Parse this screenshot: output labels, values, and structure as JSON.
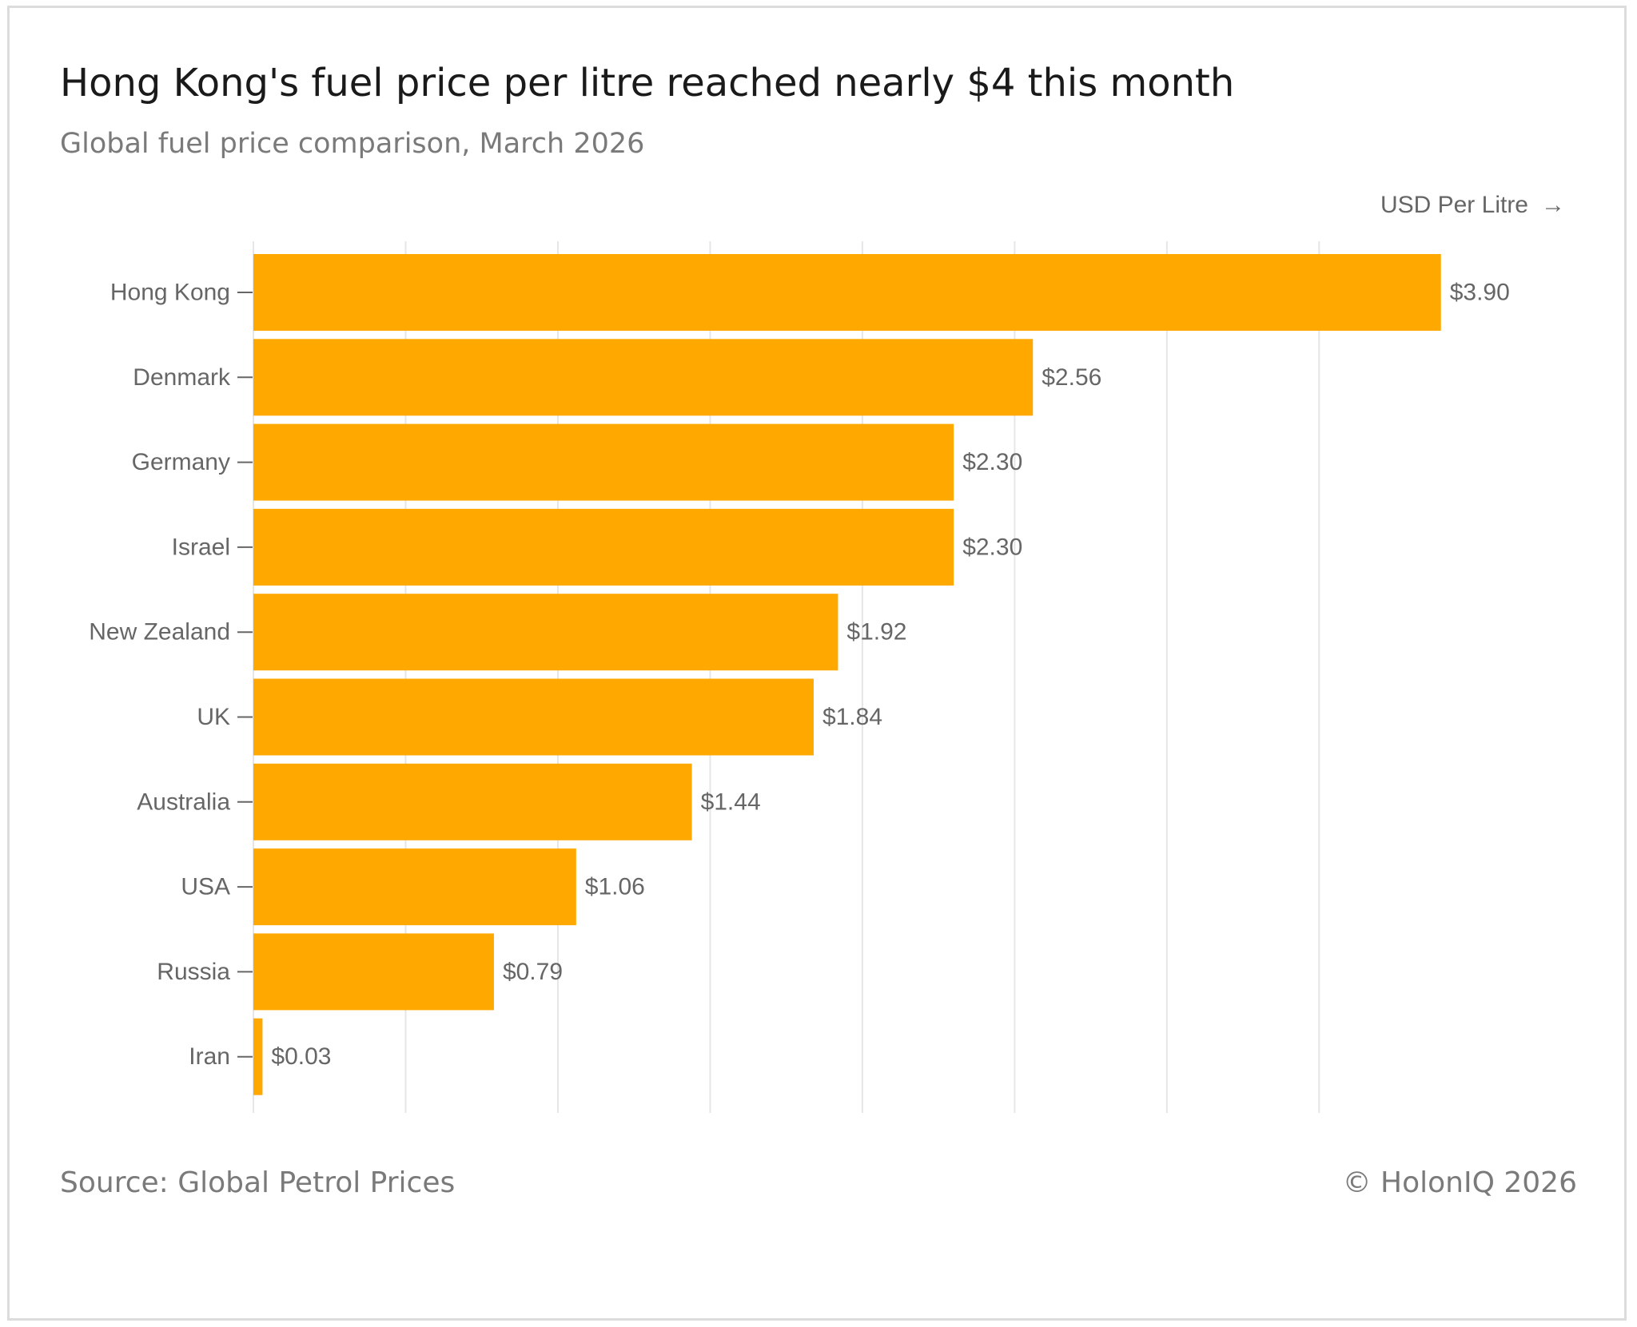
{
  "header": {
    "title": "Hong Kong's fuel price per litre reached nearly $4 this month",
    "subtitle": "Global fuel price comparison, March 2026"
  },
  "footer": {
    "source": "Source: Global Petrol Prices",
    "copyright": "© HolonIQ 2026"
  },
  "colors": {
    "bar": "#FFA800",
    "grid": "#e6e6e6",
    "text": "#666666"
  },
  "chart_data": {
    "type": "bar",
    "orientation": "horizontal",
    "title": "Hong Kong's fuel price per litre reached nearly $4 this month",
    "subtitle": "Global fuel price comparison, March 2026",
    "xlabel": "USD Per Litre",
    "xlabel_arrow": "→",
    "ylabel": "",
    "xlim": [
      0,
      4.2
    ],
    "grid_step": 0.5,
    "grid": true,
    "categories": [
      "Hong Kong",
      "Denmark",
      "Germany",
      "Israel",
      "New Zealand",
      "UK",
      "Australia",
      "USA",
      "Russia",
      "Iran"
    ],
    "values": [
      3.9,
      2.56,
      2.3,
      2.3,
      1.92,
      1.84,
      1.44,
      1.06,
      0.79,
      0.03
    ],
    "value_labels": [
      "$3.90",
      "$2.56",
      "$2.30",
      "$2.30",
      "$1.92",
      "$1.84",
      "$1.44",
      "$1.06",
      "$0.79",
      "$0.03"
    ]
  }
}
